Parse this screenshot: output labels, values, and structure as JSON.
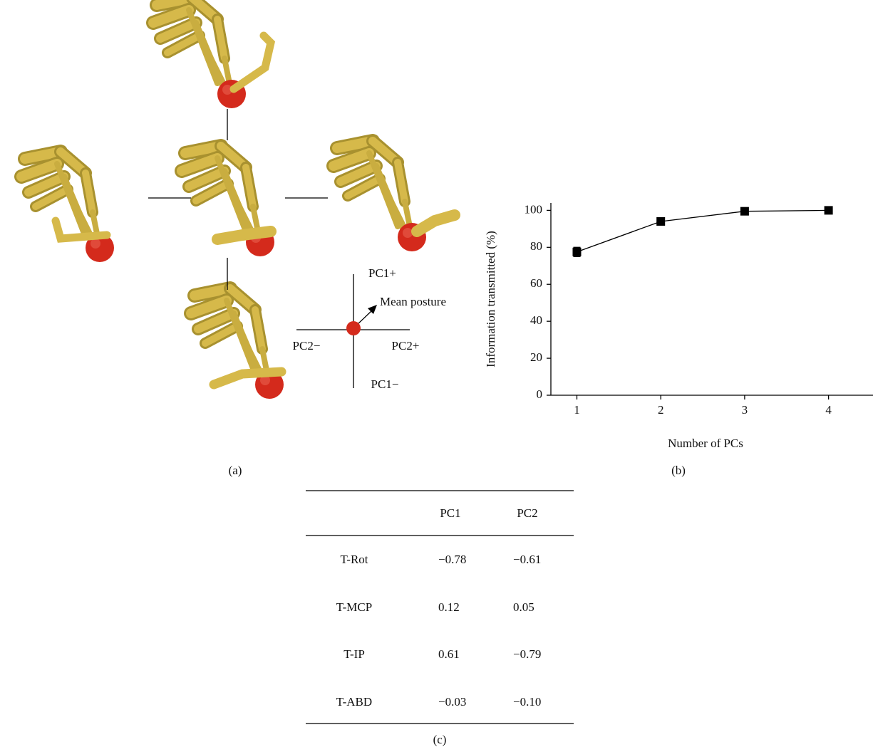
{
  "chart_data": {
    "type": "line",
    "x_label": "Number of PCs",
    "y_label": "Information transmitted (%)",
    "x": [
      1,
      2,
      3,
      4
    ],
    "values": [
      77.5,
      94,
      99.5,
      100
    ],
    "errors": [
      2.5,
      1.5,
      0.6,
      0.4
    ],
    "color": "#000000",
    "xlim": [
      0.69,
      4.53
    ],
    "xticks": [
      1,
      2,
      3,
      4
    ],
    "ylim": [
      0,
      104
    ],
    "yticks": [
      0,
      20,
      40,
      60,
      80,
      100
    ],
    "grid": false
  },
  "diagram": {
    "pc1_plus": "PC1+",
    "pc1_minus": "PC1−",
    "pc2_minus": "PC2−",
    "pc2_plus": "PC2+",
    "mean": "Mean posture"
  },
  "captions": {
    "a": "(a)",
    "b": "(b)",
    "c": "(c)"
  },
  "table": {
    "header": [
      "PC1",
      "PC2"
    ],
    "rows": [
      [
        "T-Rot",
        "−0.78",
        "−0.61"
      ],
      [
        "T-MCP",
        "0.12",
        "0.05"
      ],
      [
        "T-IP",
        "0.61",
        "−0.79"
      ],
      [
        "T-ABD",
        "−0.03",
        "−0.10"
      ]
    ]
  }
}
